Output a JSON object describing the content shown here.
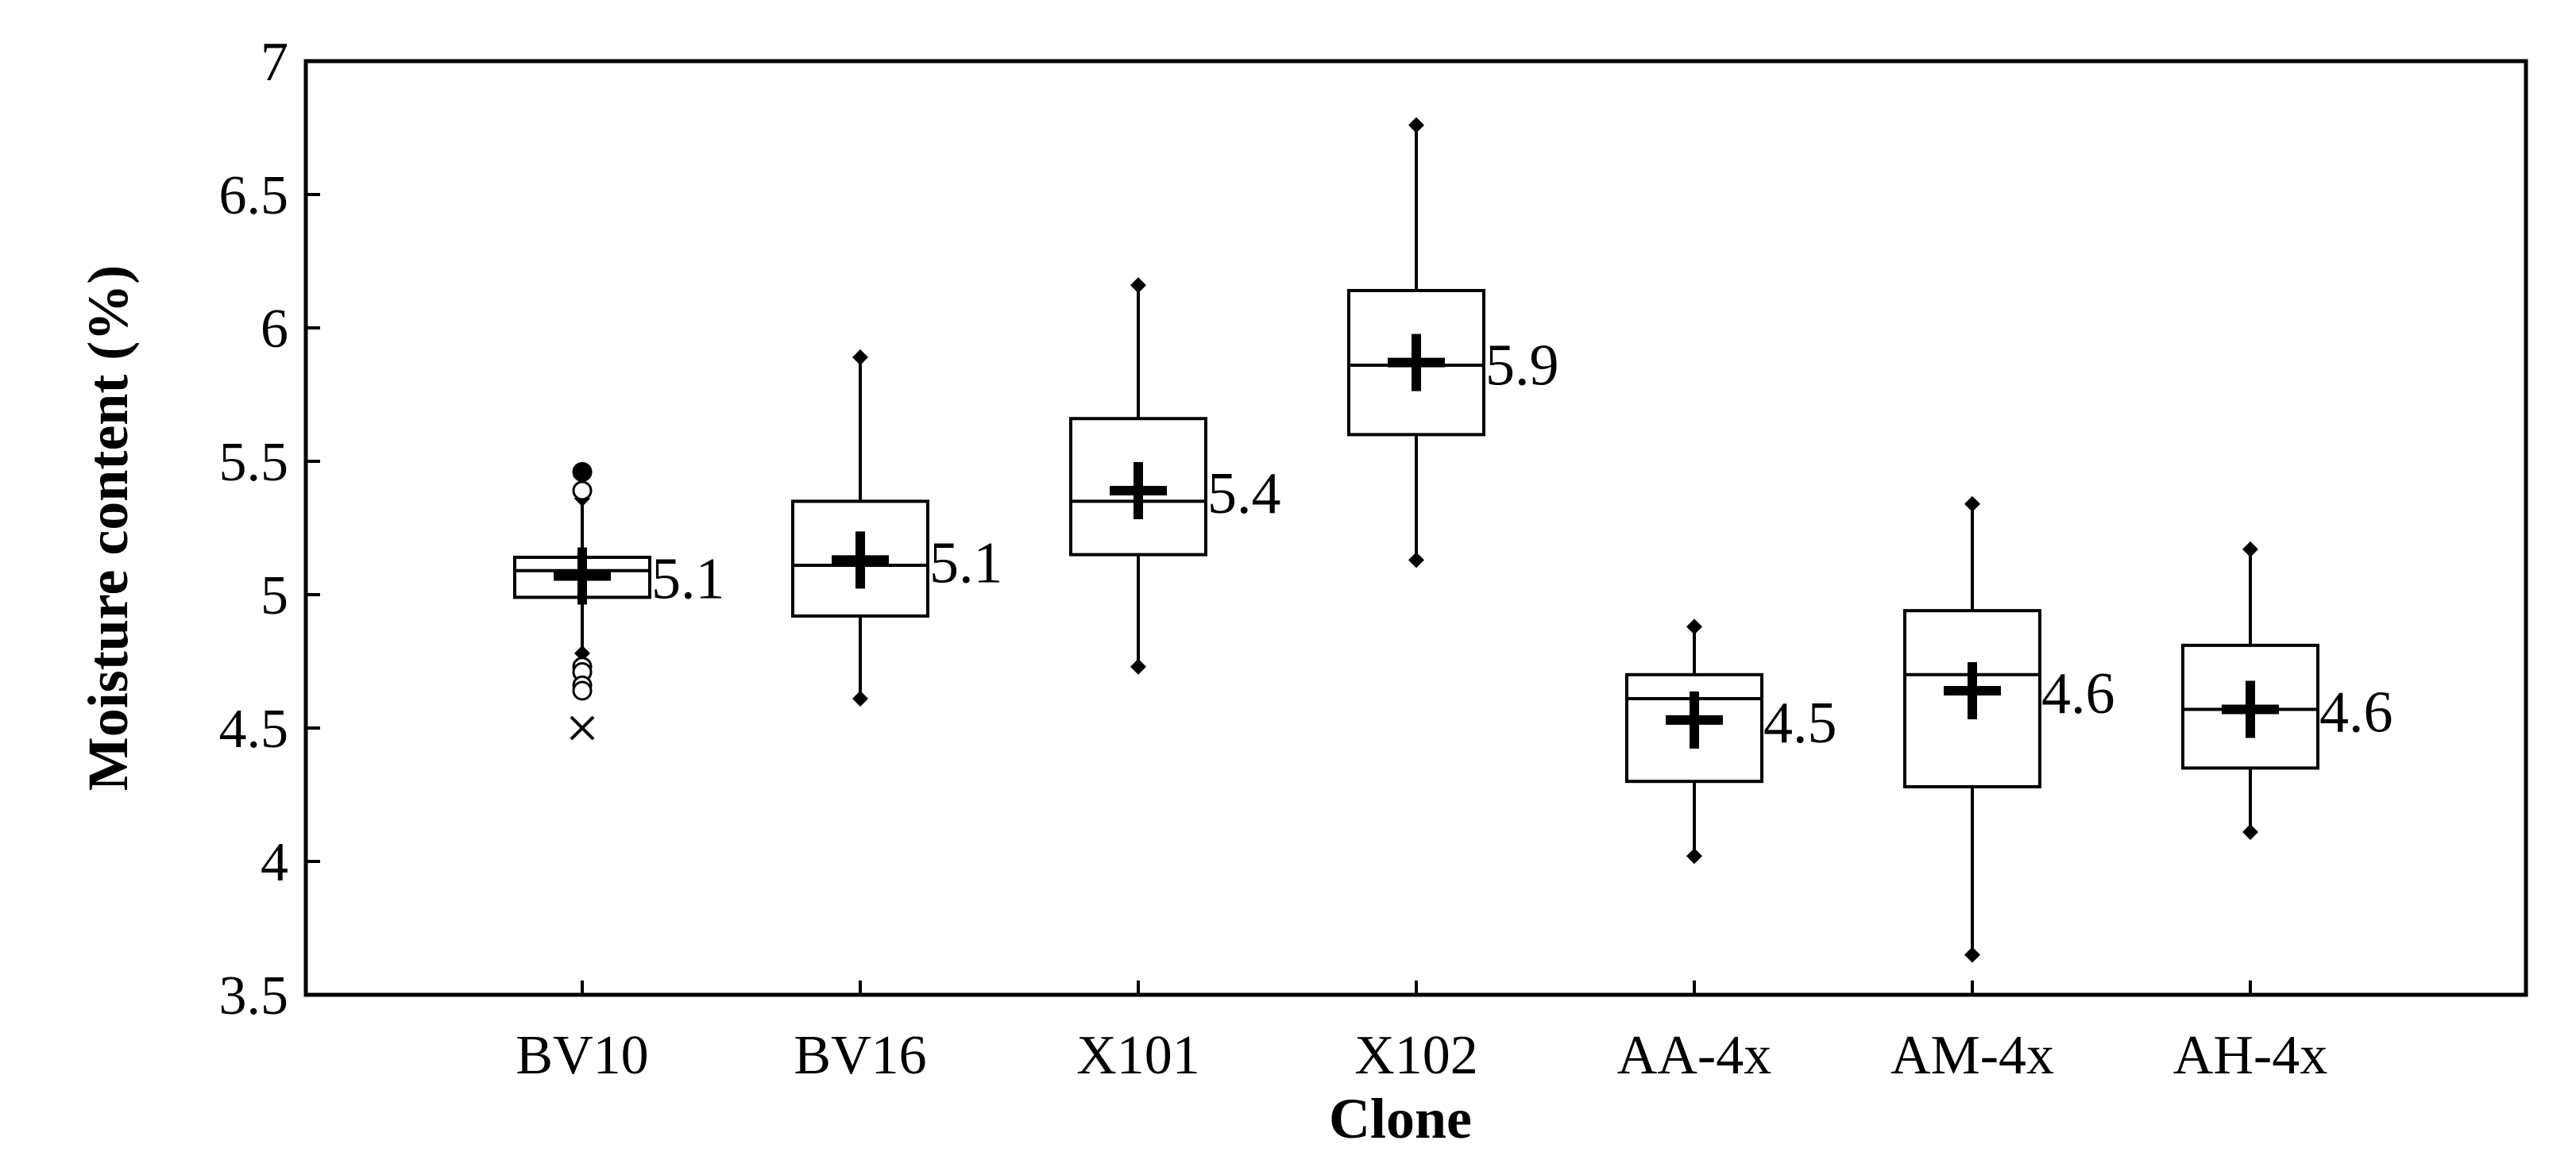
{
  "chart_data": {
    "type": "boxplot",
    "xlabel": "Clone",
    "ylabel": "Moisture content (%)",
    "ylim": [
      3.5,
      7
    ],
    "yticks": [
      3.5,
      4,
      4.5,
      5,
      5.5,
      6,
      6.5,
      7
    ],
    "ytick_labels": [
      "3.5",
      "4",
      "4.5",
      "5",
      "5.5",
      "6",
      "6.5",
      "7"
    ],
    "grid": false,
    "categories": [
      "BV10",
      "BV16",
      "X101",
      "X102",
      "AA-4x",
      "AM-4x",
      "AH-4x"
    ],
    "boxes": [
      {
        "category": "BV10",
        "whisker_low": 4.78,
        "q1": 4.99,
        "median": 5.09,
        "q3": 5.14,
        "whisker_high": 5.36,
        "mean": 5.07,
        "mean_label": "5.1",
        "outliers": [
          5.46,
          5.39,
          4.73,
          4.71,
          4.66,
          4.64
        ],
        "extreme_outliers": [
          4.5
        ]
      },
      {
        "category": "BV16",
        "whisker_low": 4.61,
        "q1": 4.92,
        "median": 5.11,
        "q3": 5.35,
        "whisker_high": 5.89,
        "mean": 5.13,
        "mean_label": "5.1",
        "outliers": [],
        "extreme_outliers": []
      },
      {
        "category": "X101",
        "whisker_low": 4.73,
        "q1": 5.15,
        "median": 5.35,
        "q3": 5.66,
        "whisker_high": 6.16,
        "mean": 5.39,
        "mean_label": "5.4",
        "outliers": [],
        "extreme_outliers": []
      },
      {
        "category": "X102",
        "whisker_low": 5.13,
        "q1": 5.6,
        "median": 5.86,
        "q3": 6.14,
        "whisker_high": 6.76,
        "mean": 5.87,
        "mean_label": "5.9",
        "outliers": [],
        "extreme_outliers": []
      },
      {
        "category": "AA-4x",
        "whisker_low": 4.02,
        "q1": 4.3,
        "median": 4.61,
        "q3": 4.7,
        "whisker_high": 4.88,
        "mean": 4.53,
        "mean_label": "4.5",
        "outliers": [],
        "extreme_outliers": []
      },
      {
        "category": "AM-4x",
        "whisker_low": 3.65,
        "q1": 4.28,
        "median": 4.7,
        "q3": 4.94,
        "whisker_high": 5.34,
        "mean": 4.64,
        "mean_label": "4.6",
        "outliers": [],
        "extreme_outliers": []
      },
      {
        "category": "AH-4x",
        "whisker_low": 4.11,
        "q1": 4.35,
        "median": 4.57,
        "q3": 4.81,
        "whisker_high": 5.17,
        "mean": 4.57,
        "mean_label": "4.6",
        "outliers": [],
        "extreme_outliers": []
      }
    ],
    "colors": {
      "line": "#000000",
      "background": "#ffffff"
    }
  }
}
